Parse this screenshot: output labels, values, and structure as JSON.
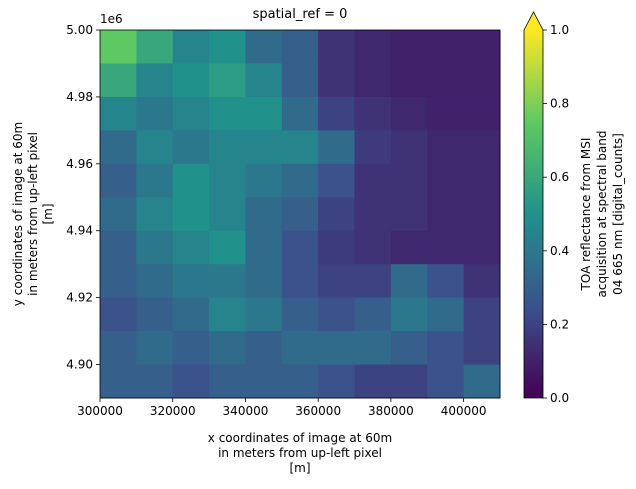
{
  "chart_data": {
    "type": "image",
    "title": "spatial_ref = 0",
    "x_label": [
      "x coordinates of image at 60m",
      "in meters from up-left pixel",
      "[m]"
    ],
    "y_label": [
      "y coordinates of image at 60m",
      "in meters from up-left pixel",
      "[m]"
    ],
    "y_offset_text": "1e6",
    "xlim": [
      300000,
      410000
    ],
    "ylim": [
      4890000,
      5000000
    ],
    "xticks": [
      300000,
      320000,
      340000,
      360000,
      380000,
      400000
    ],
    "yticks": [
      {
        "value": 4900000,
        "label": "4.90"
      },
      {
        "value": 4920000,
        "label": "4.92"
      },
      {
        "value": 4940000,
        "label": "4.94"
      },
      {
        "value": 4960000,
        "label": "4.96"
      },
      {
        "value": 4980000,
        "label": "4.98"
      },
      {
        "value": 5000000,
        "label": "5.00"
      }
    ],
    "colormap": "viridis",
    "colorbar": {
      "label": [
        "TOA reflectance from MSI",
        "acquisition at spectral band",
        "04 665 nm [digital_counts]"
      ],
      "clim": [
        0,
        1
      ],
      "extend": "max",
      "ticks": [
        {
          "value": 0,
          "label": "0.0"
        },
        0.2,
        0.4,
        0.6,
        0.8,
        {
          "value": 1,
          "label": "1.0"
        }
      ]
    },
    "z": [
      [
        0.75,
        0.6,
        0.45,
        0.5,
        0.35,
        0.3,
        0.15,
        0.12,
        0.1,
        0.1,
        0.1
      ],
      [
        0.6,
        0.45,
        0.5,
        0.55,
        0.45,
        0.3,
        0.15,
        0.12,
        0.1,
        0.1,
        0.1
      ],
      [
        0.45,
        0.4,
        0.45,
        0.5,
        0.5,
        0.35,
        0.2,
        0.15,
        0.12,
        0.1,
        0.1
      ],
      [
        0.35,
        0.45,
        0.4,
        0.45,
        0.45,
        0.45,
        0.35,
        0.18,
        0.15,
        0.12,
        0.12
      ],
      [
        0.3,
        0.4,
        0.5,
        0.45,
        0.4,
        0.35,
        0.25,
        0.15,
        0.15,
        0.12,
        0.12
      ],
      [
        0.35,
        0.45,
        0.5,
        0.45,
        0.35,
        0.3,
        0.2,
        0.15,
        0.15,
        0.12,
        0.12
      ],
      [
        0.3,
        0.4,
        0.45,
        0.5,
        0.35,
        0.25,
        0.18,
        0.15,
        0.12,
        0.12,
        0.12
      ],
      [
        0.3,
        0.35,
        0.4,
        0.4,
        0.35,
        0.25,
        0.2,
        0.2,
        0.35,
        0.25,
        0.15
      ],
      [
        0.25,
        0.3,
        0.35,
        0.45,
        0.4,
        0.3,
        0.25,
        0.3,
        0.4,
        0.35,
        0.2
      ],
      [
        0.3,
        0.35,
        0.3,
        0.35,
        0.3,
        0.35,
        0.35,
        0.35,
        0.3,
        0.25,
        0.2
      ],
      [
        0.3,
        0.3,
        0.25,
        0.3,
        0.3,
        0.3,
        0.25,
        0.2,
        0.2,
        0.25,
        0.35
      ]
    ]
  }
}
